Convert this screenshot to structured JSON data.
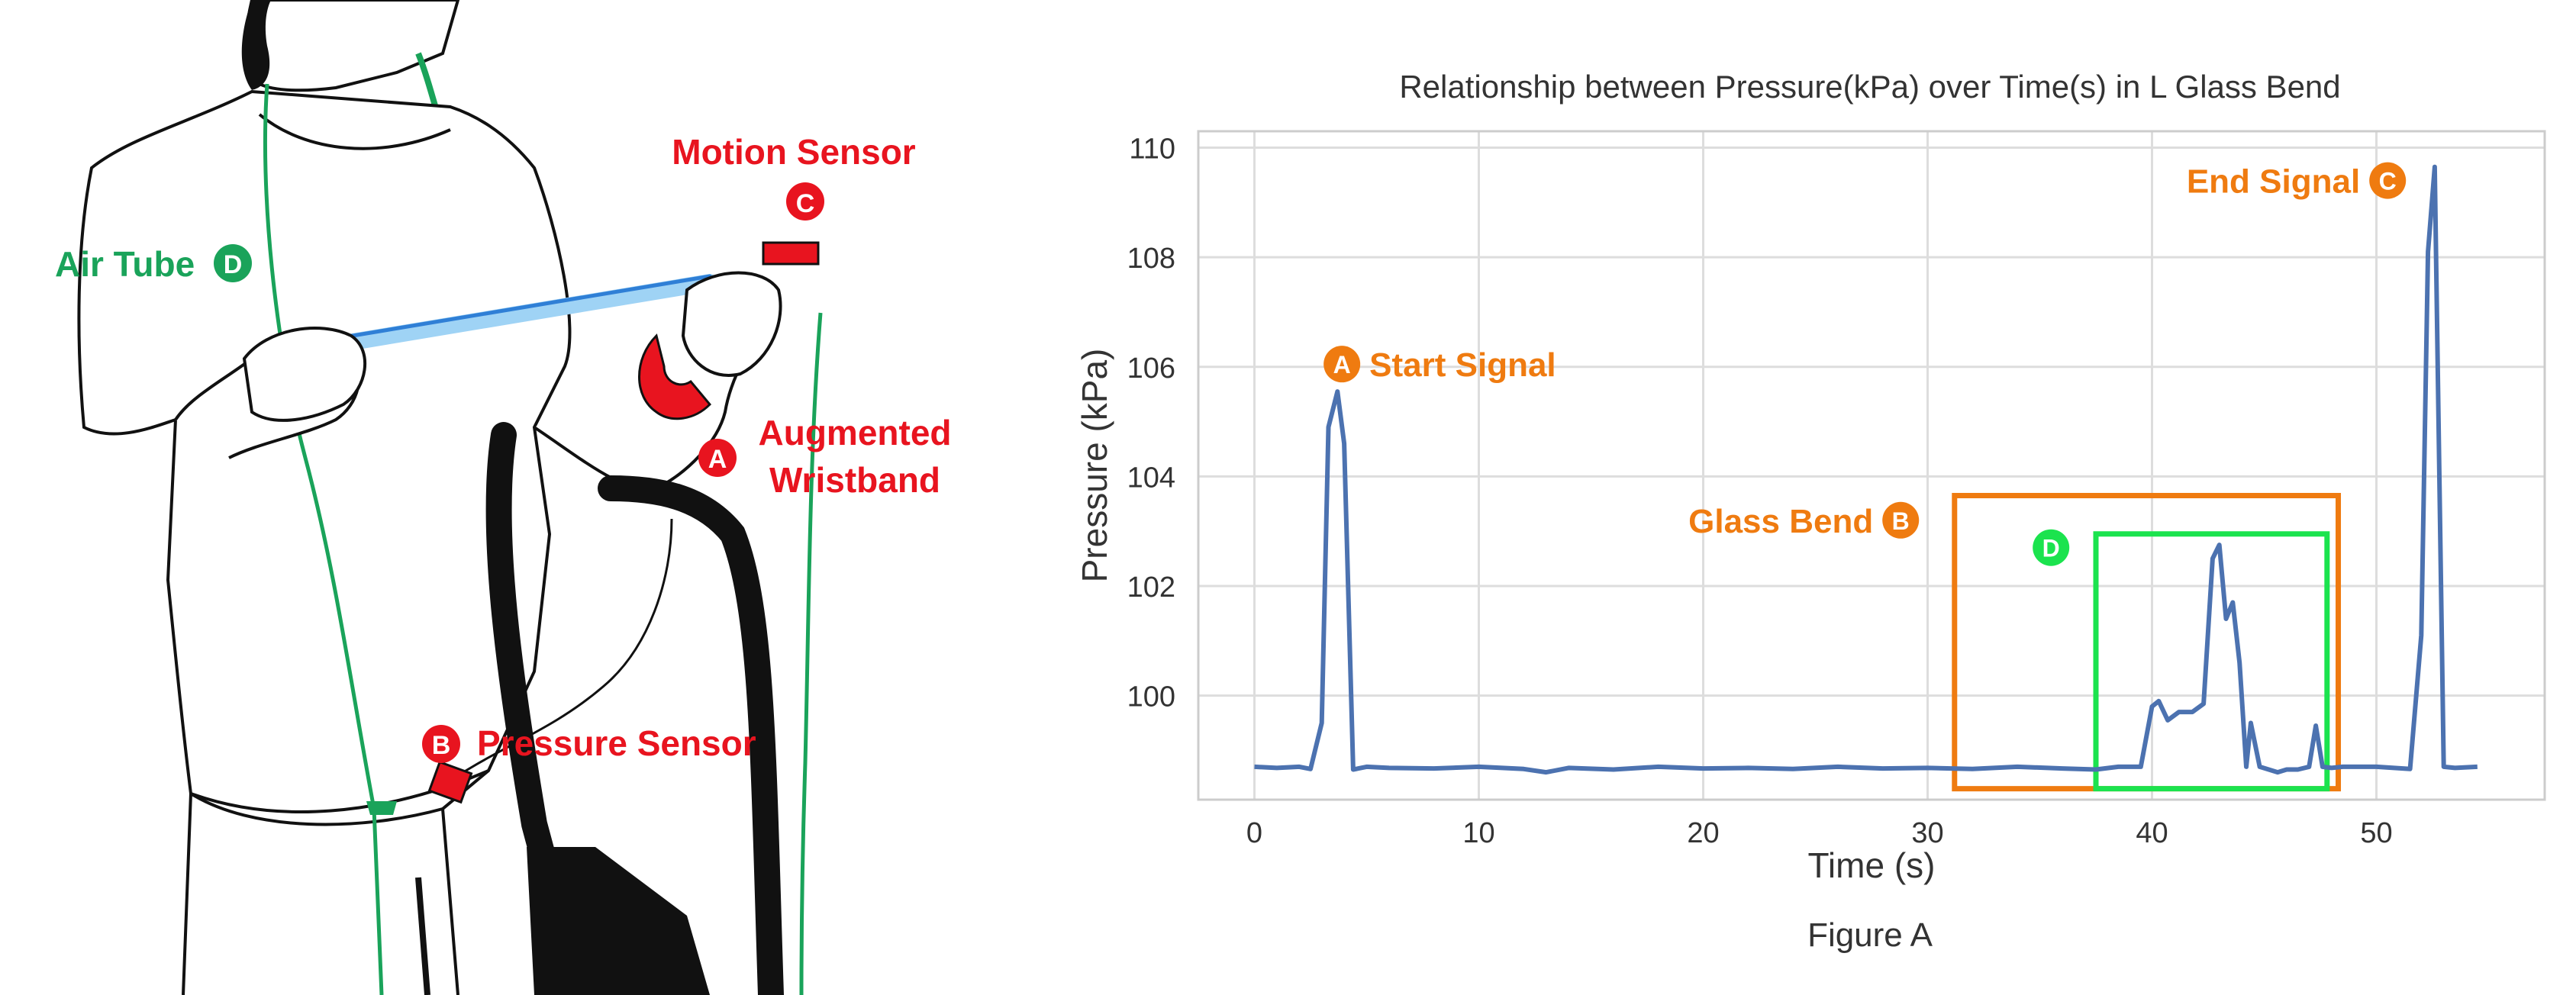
{
  "illustration": {
    "labels": {
      "motion_sensor": {
        "text": "Motion Sensor",
        "badge": "C"
      },
      "air_tube": {
        "text": "Air Tube",
        "badge": "D"
      },
      "augmented_wristband_line1": "Augmented",
      "augmented_wristband_line2": "Wristband",
      "augmented_wristband_badge": "A",
      "pressure_sensor": {
        "text": "Pressure Sensor",
        "badge": "B"
      }
    }
  },
  "chart_data": {
    "type": "line",
    "title": "Relationship between Pressure(kPa) over Time(s) in L Glass Bend",
    "xlabel": "Time (s)",
    "ylabel": "Pressure (kPa)",
    "xlim": [
      -2.5,
      57.5
    ],
    "ylim": [
      98.1,
      110.3
    ],
    "xticks": [
      0,
      10,
      20,
      30,
      40,
      50
    ],
    "yticks": [
      100,
      102,
      104,
      106,
      108,
      110
    ],
    "grid": true,
    "series": [
      {
        "color": "#4c72b0",
        "x": [
          0,
          1,
          2,
          2.5,
          3.0,
          3.3,
          3.7,
          4.0,
          4.4,
          5.0,
          6,
          8,
          10,
          12,
          13,
          14,
          16,
          18,
          20,
          22,
          24,
          26,
          28,
          30,
          32,
          34,
          36,
          37.5,
          38.5,
          39.5,
          40.0,
          40.3,
          40.7,
          41.2,
          41.8,
          42.3,
          42.7,
          43.0,
          43.3,
          43.6,
          43.9,
          44.2,
          44.4,
          44.8,
          45.2,
          45.6,
          46.0,
          46.5,
          47.0,
          47.3,
          47.6,
          48.0,
          48.5,
          50,
          51.5,
          52.0,
          52.3,
          52.6,
          53.0,
          53.5,
          54.5
        ],
        "y": [
          98.7,
          98.68,
          98.7,
          98.66,
          99.5,
          104.9,
          105.55,
          104.6,
          98.65,
          98.7,
          98.68,
          98.67,
          98.7,
          98.66,
          98.6,
          98.68,
          98.65,
          98.7,
          98.67,
          98.68,
          98.66,
          98.7,
          98.67,
          98.68,
          98.66,
          98.7,
          98.67,
          98.65,
          98.7,
          98.7,
          99.8,
          99.9,
          99.55,
          99.7,
          99.7,
          99.85,
          102.5,
          102.75,
          101.4,
          101.7,
          100.6,
          98.7,
          99.5,
          98.7,
          98.65,
          98.6,
          98.65,
          98.65,
          98.7,
          99.45,
          98.7,
          98.68,
          98.7,
          98.7,
          98.66,
          101.1,
          108.1,
          109.65,
          98.7,
          98.68,
          98.7
        ]
      }
    ],
    "annotations": [
      {
        "badge": "A",
        "text": "Start Signal",
        "color": "#ef7b10",
        "x": 3.9,
        "y": 106.05
      },
      {
        "badge": "B",
        "text": "Glass Bend",
        "color": "#ef7b10",
        "x": 28.8,
        "y": 103.2
      },
      {
        "badge": "C",
        "text": "End Signal",
        "color": "#ef7b10",
        "x": 50.5,
        "y": 109.4
      },
      {
        "badge": "D",
        "text": "",
        "color": "#1be34e",
        "x": 35.5,
        "y": 102.7
      }
    ],
    "regions": [
      {
        "name": "glass-bend-box",
        "color": "#ef7b10",
        "x0": 31.2,
        "x1": 48.3,
        "y0": 98.3,
        "y1": 103.65
      },
      {
        "name": "d-box",
        "color": "#1be34e",
        "x0": 37.5,
        "x1": 47.8,
        "y0": 98.3,
        "y1": 102.95
      }
    ],
    "caption": "Figure A"
  }
}
